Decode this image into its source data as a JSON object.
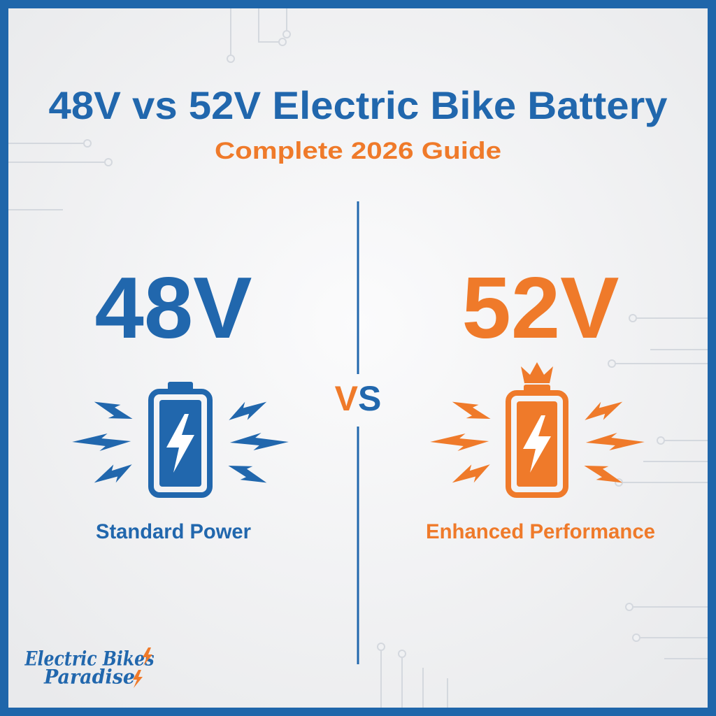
{
  "header": {
    "title": "48V vs 52V Electric Bike Battery",
    "subtitle": "Complete 2026 Guide"
  },
  "left": {
    "voltage": "48V",
    "label": "Standard Power"
  },
  "center": {
    "vs": "VS"
  },
  "right": {
    "voltage": "52V",
    "label": "Enhanced Performance"
  },
  "logo": {
    "line1": "Electric Bikes",
    "line2": "Paradise"
  }
}
